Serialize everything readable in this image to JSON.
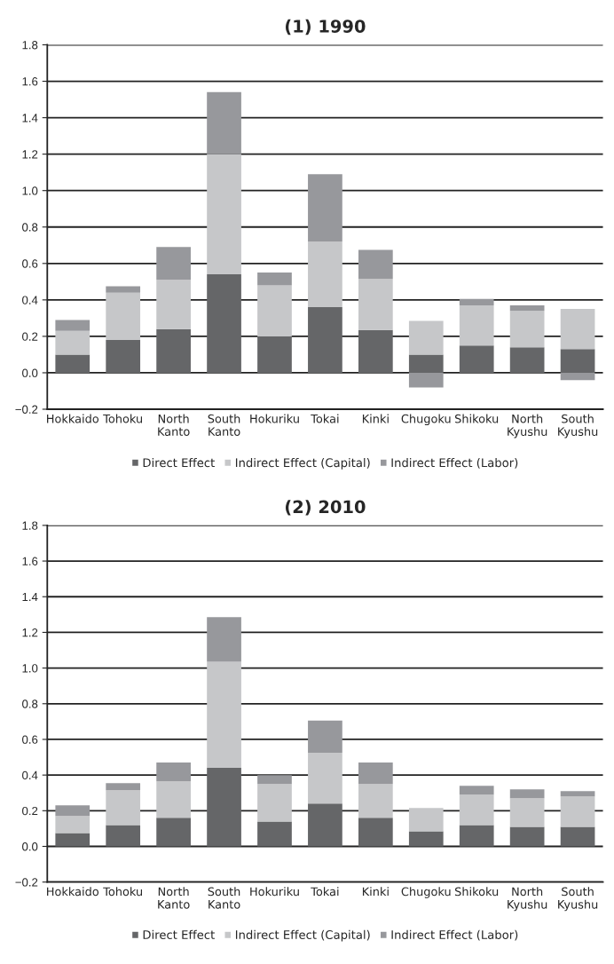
{
  "chart_data": [
    {
      "type": "bar",
      "title": "(1) 1990",
      "stacked": true,
      "grid": "y",
      "legend": "bottom",
      "categories": [
        "Hokkaido",
        "Tohoku",
        "North\nKanto",
        "South\nKanto",
        "Hokuriku",
        "Tokai",
        "Kinki",
        "Chugoku",
        "Shikoku",
        "North\nKyushu",
        "South\nKyushu"
      ],
      "series": [
        {
          "name": "Direct Effect",
          "color": "#656668",
          "values": [
            0.1,
            0.18,
            0.24,
            0.54,
            0.2,
            0.36,
            0.235,
            0.1,
            0.15,
            0.14,
            0.13
          ]
        },
        {
          "name": "Indirect Effect (Capital)",
          "color": "#c6c7c9",
          "values": [
            0.13,
            0.26,
            0.27,
            0.66,
            0.28,
            0.36,
            0.28,
            0.185,
            0.22,
            0.2,
            0.22
          ]
        },
        {
          "name": "Indirect Effect (Labor)",
          "color": "#97989c",
          "values": [
            0.06,
            0.035,
            0.18,
            0.34,
            0.07,
            0.37,
            0.16,
            -0.08,
            0.035,
            0.03,
            -0.04
          ]
        }
      ],
      "ylim": [
        -0.2,
        1.8
      ],
      "yticks": [
        {
          "value": -0.2,
          "label": "−0.2"
        },
        {
          "value": 0,
          "label": "0.0"
        },
        0.2,
        0.4,
        0.6,
        0.8,
        {
          "value": 1,
          "label": "1.0"
        },
        1.2,
        1.4,
        1.6,
        1.8
      ]
    },
    {
      "type": "bar",
      "title": "(2) 2010",
      "stacked": true,
      "grid": "y",
      "legend": "bottom",
      "categories": [
        "Hokkaido",
        "Tohoku",
        "North\nKanto",
        "South\nKanto",
        "Hokuriku",
        "Tokai",
        "Kinki",
        "Chugoku",
        "Shikoku",
        "North\nKyushu",
        "South\nKyushu"
      ],
      "series": [
        {
          "name": "Direct Effect",
          "color": "#656668",
          "values": [
            0.075,
            0.12,
            0.16,
            0.44,
            0.14,
            0.24,
            0.16,
            0.085,
            0.12,
            0.11,
            0.11
          ]
        },
        {
          "name": "Indirect Effect (Capital)",
          "color": "#c6c7c9",
          "values": [
            0.095,
            0.195,
            0.205,
            0.595,
            0.21,
            0.285,
            0.19,
            0.13,
            0.17,
            0.16,
            0.17
          ]
        },
        {
          "name": "Indirect Effect (Labor)",
          "color": "#97989c",
          "values": [
            0.06,
            0.04,
            0.105,
            0.25,
            0.05,
            0.18,
            0.12,
            0,
            0.05,
            0.05,
            0.03
          ]
        }
      ],
      "ylim": [
        -0.2,
        1.8
      ],
      "yticks": [
        {
          "value": -0.2,
          "label": "−0.2"
        },
        {
          "value": 0,
          "label": "0.0"
        },
        0.2,
        0.4,
        0.6,
        0.8,
        {
          "value": 1,
          "label": "1.0"
        },
        1.2,
        1.4,
        1.6,
        1.8
      ]
    }
  ]
}
